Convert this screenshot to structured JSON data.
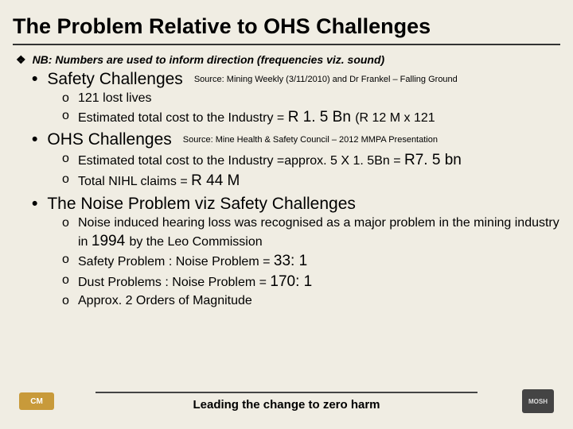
{
  "title": "The Problem Relative to OHS Challenges",
  "nb_marker": "❖",
  "nb_text": "NB: Numbers are used to inform direction (frequencies viz. sound)",
  "sections": [
    {
      "heading": "Safety Challenges",
      "source": "Source: Mining Weekly (3/11/2010) and Dr Frankel – Falling Ground",
      "items": [
        {
          "plain": "121 lost lives"
        },
        {
          "pre": "Estimated total cost to the Industry = ",
          "big": "R 1. 5 Bn ",
          "post": "(R 12 M x 121"
        }
      ]
    },
    {
      "heading": "OHS Challenges",
      "source": "Source: Mine Health & Safety Council – 2012 MMPA Presentation",
      "items": [
        {
          "pre": "Estimated total cost to the Industry =approx. 5 X 1. 5Bn = ",
          "big": "R7. 5 bn",
          "post": ""
        },
        {
          "pre": "Total NIHL claims = ",
          "big": "R 44 M",
          "post": ""
        }
      ]
    },
    {
      "heading": "The Noise Problem viz Safety Challenges",
      "source": "",
      "items": [
        {
          "pre": "Noise induced hearing loss was recognised as a major problem in the mining industry in ",
          "big": "1994 ",
          "post": "by the Leo Commission"
        },
        {
          "pre": "Safety Problem : Noise Problem = ",
          "big": "33: 1",
          "post": ""
        },
        {
          "pre": "Dust Problems : Noise Problem = ",
          "big": "170: 1",
          "post": ""
        },
        {
          "plain": "Approx. 2 Orders of Magnitude"
        }
      ]
    }
  ],
  "footer": "Leading the change to zero harm",
  "logo_left": "CM",
  "logo_right": "MOSH"
}
